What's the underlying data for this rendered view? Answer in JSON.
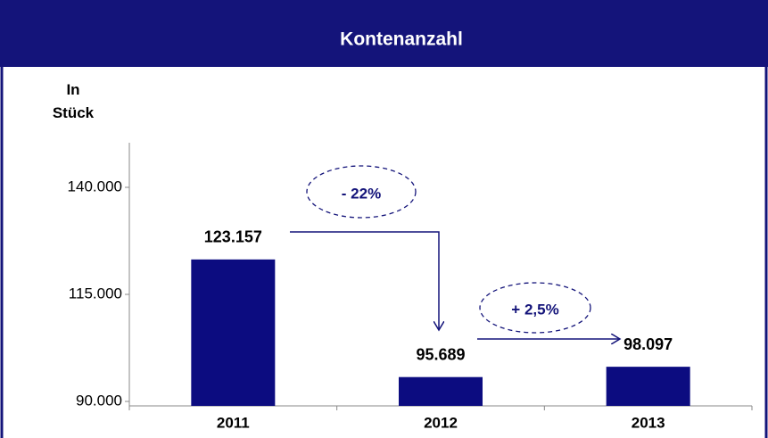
{
  "chart_data": {
    "type": "bar",
    "title": "Kontenanzahl",
    "y_label": "In Stück",
    "categories": [
      "2011",
      "2012",
      "2013"
    ],
    "values": [
      123157,
      95689,
      98097
    ],
    "value_labels": [
      "123.157",
      "95.689",
      "98.097"
    ],
    "color": "#0c0c80",
    "ylim": [
      90000,
      150000
    ],
    "yticks": [
      {
        "value": 90000,
        "label": "90.000"
      },
      {
        "value": 115000,
        "label": "115.000"
      },
      {
        "value": 140000,
        "label": "140.000"
      }
    ],
    "annotations": [
      "- 22%",
      "+ 2,5%"
    ]
  }
}
